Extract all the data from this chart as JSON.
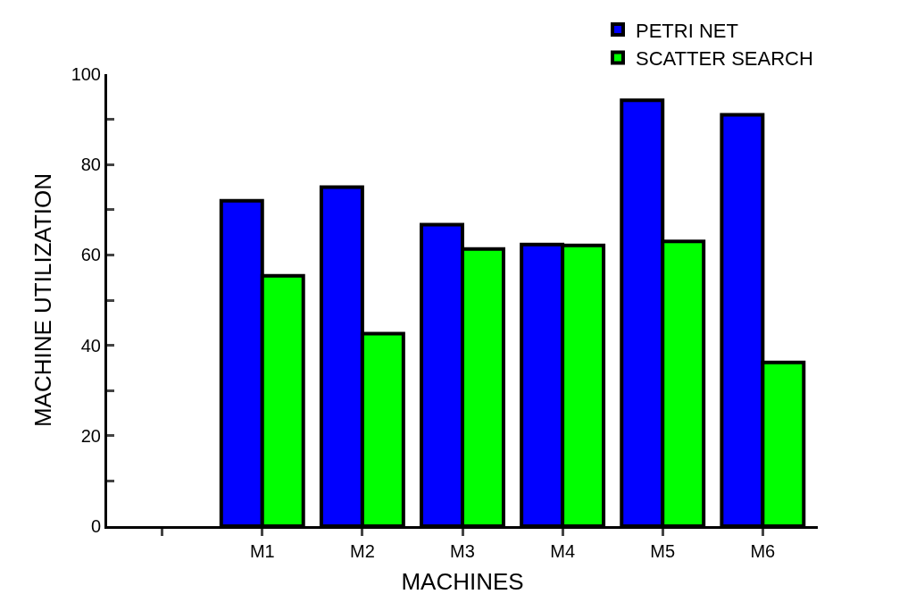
{
  "chart_data": {
    "type": "bar",
    "xlabel": "MACHINES",
    "ylabel": "MACHINE UTILIZATION",
    "categories": [
      null,
      "M1",
      "M2",
      "M3",
      "M4",
      "M5",
      "M6"
    ],
    "series": [
      {
        "name": "PETRI NET",
        "color": "#0000ff",
        "values": [
          null,
          72,
          75,
          66.7,
          62.3,
          94.2,
          91
        ]
      },
      {
        "name": "SCATTER SEARCH",
        "color": "#00ff00",
        "values": [
          null,
          55.4,
          42.6,
          61.3,
          62.1,
          63,
          36.2
        ]
      }
    ],
    "ylim": [
      0,
      100
    ],
    "yticks": [
      0,
      {
        "value": 10,
        "label": null
      },
      20,
      {
        "value": 30,
        "label": null
      },
      40,
      {
        "value": 50,
        "label": null
      },
      60,
      {
        "value": 70,
        "label": null
      },
      80,
      {
        "value": 90,
        "label": null
      },
      100
    ],
    "legend": "top right"
  }
}
